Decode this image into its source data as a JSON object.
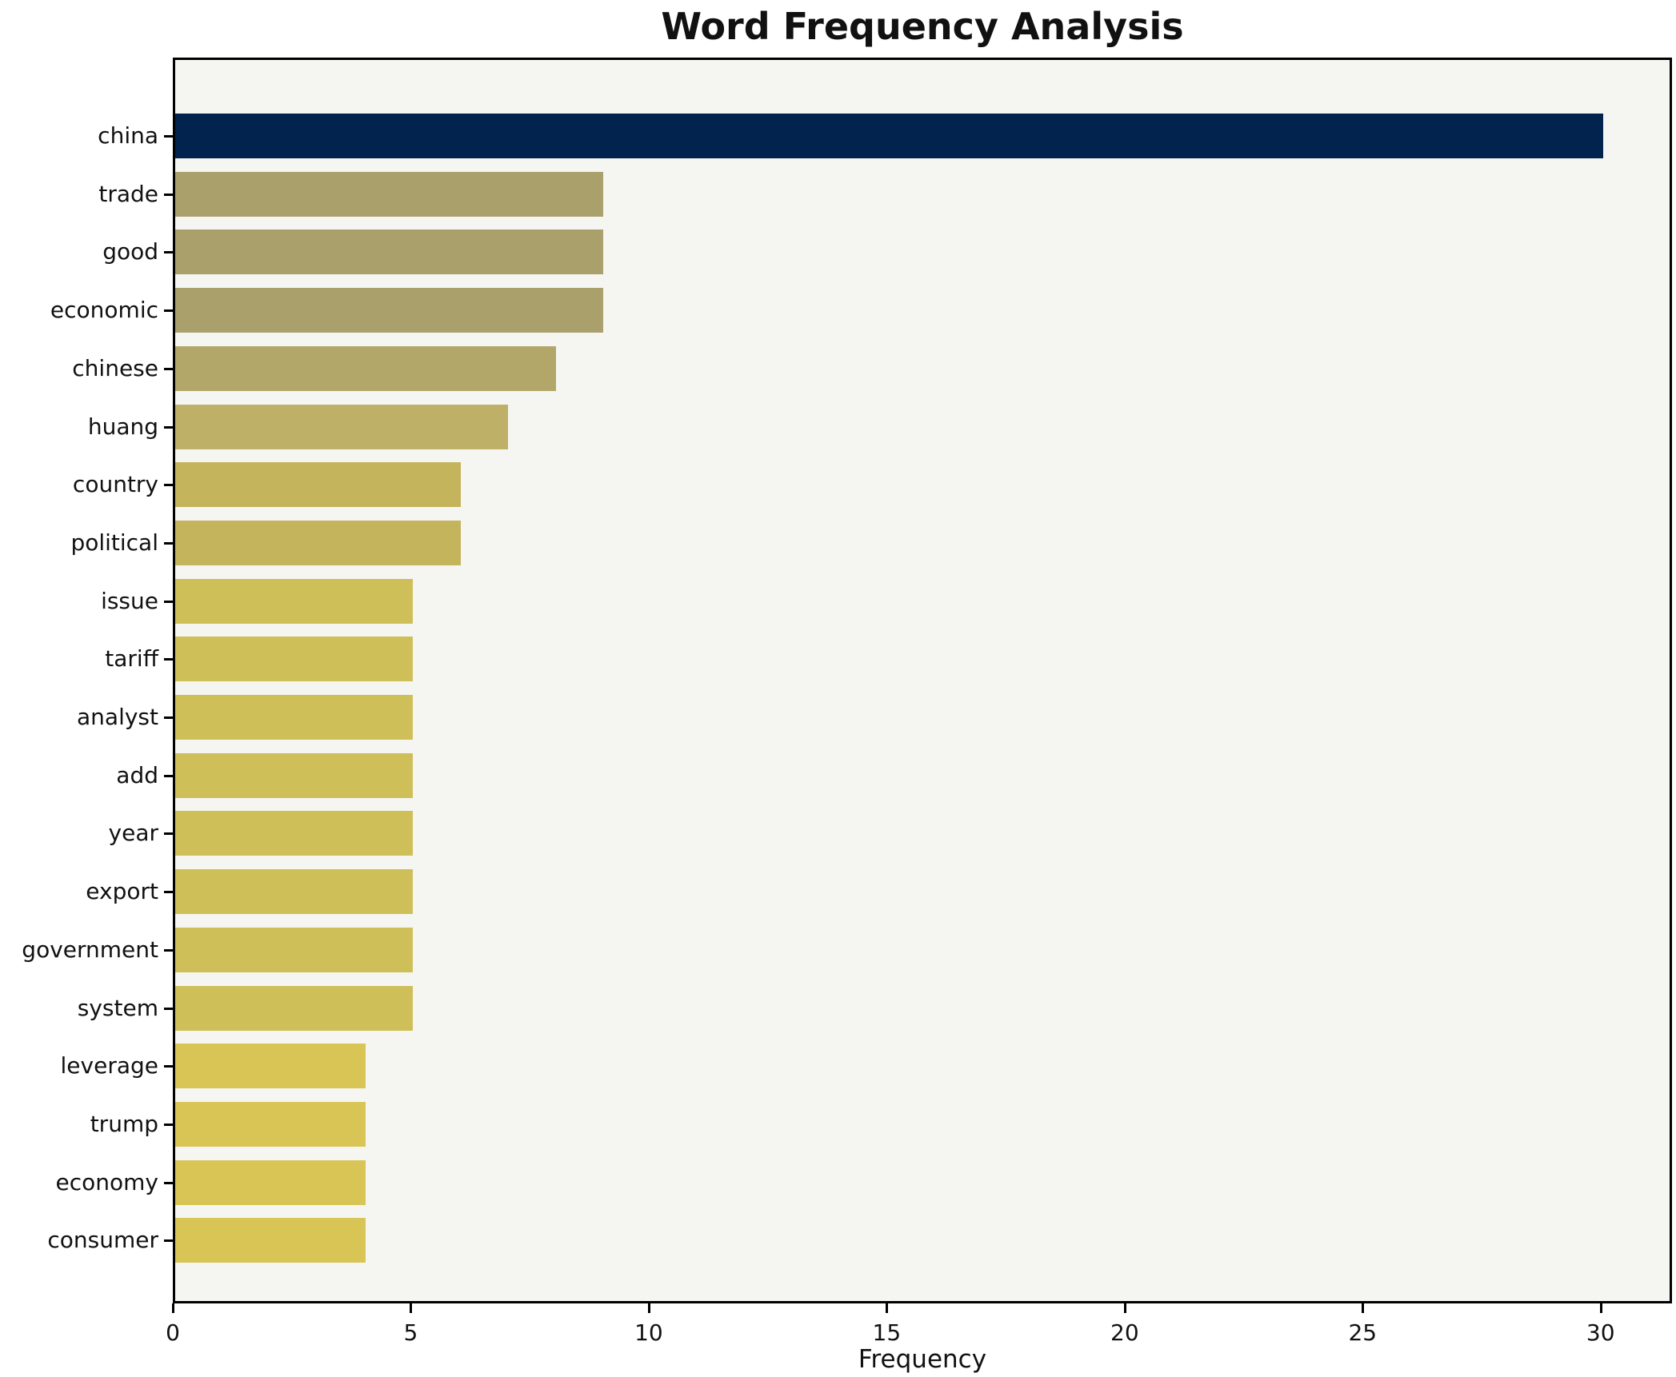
{
  "chart_data": {
    "type": "bar",
    "orientation": "horizontal",
    "title": "Word Frequency Analysis",
    "xlabel": "Frequency",
    "ylabel": "",
    "grid": false,
    "legend": null,
    "xlim": [
      0,
      31.5
    ],
    "xticks": [
      0,
      5,
      10,
      15,
      20,
      25,
      30
    ],
    "categories": [
      "china",
      "trade",
      "good",
      "economic",
      "chinese",
      "huang",
      "country",
      "political",
      "issue",
      "tariff",
      "analyst",
      "add",
      "year",
      "export",
      "government",
      "system",
      "leverage",
      "trump",
      "economy",
      "consumer"
    ],
    "values": [
      30,
      9,
      9,
      9,
      8,
      7,
      6,
      6,
      5,
      5,
      5,
      5,
      5,
      5,
      5,
      5,
      4,
      4,
      4,
      4
    ],
    "bar_colors": [
      "#02234d",
      "#aaa06c",
      "#aaa06c",
      "#aaa06c",
      "#b2a768",
      "#beb066",
      "#c4b45c",
      "#c4b45c",
      "#cfbf58",
      "#cfbf58",
      "#cfbf58",
      "#cfbf58",
      "#cfbf58",
      "#cfbf58",
      "#cfbf58",
      "#cfbf58",
      "#d8c556",
      "#d8c556",
      "#d8c556",
      "#d8c556"
    ],
    "plot_background": "#f5f5f2",
    "figure_background": "#ffffff"
  }
}
